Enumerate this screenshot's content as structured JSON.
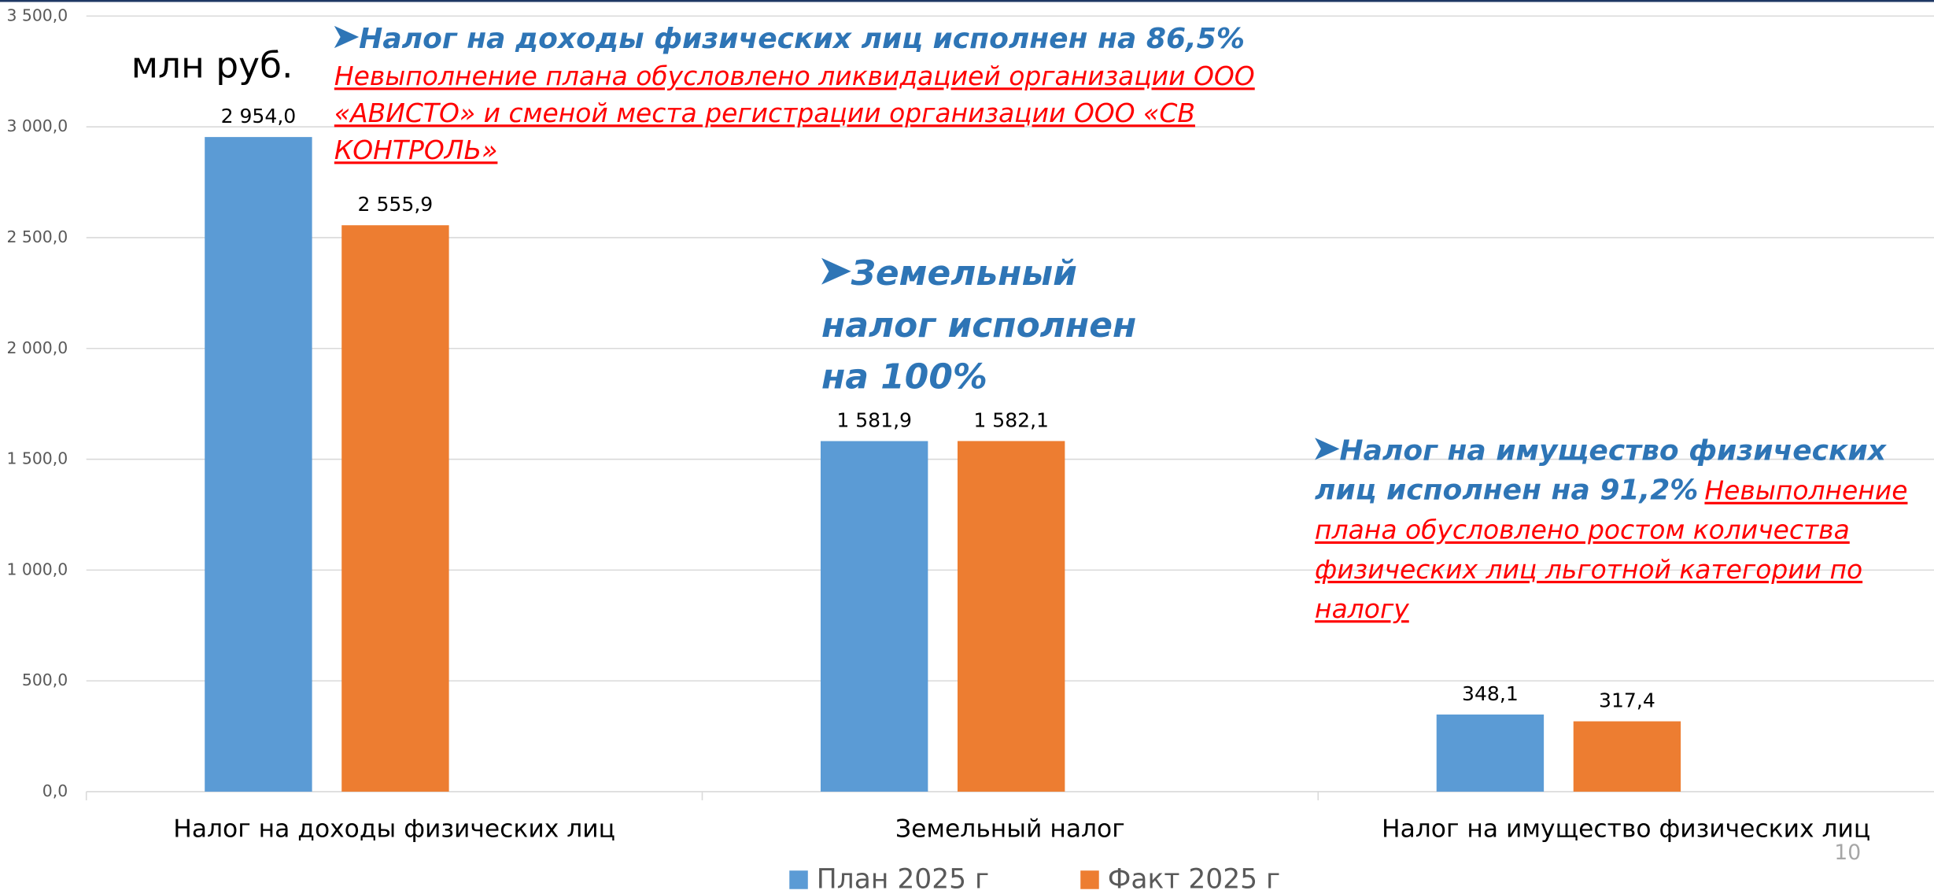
{
  "chart_data": {
    "type": "bar",
    "unit_label": "млн руб.",
    "categories": [
      "Налог на доходы физических лиц",
      "Земельный налог",
      "Налог на имущество физических лиц"
    ],
    "series": [
      {
        "name": "План 2025 г",
        "color": "#5b9bd5",
        "values": [
          2954.0,
          1581.9,
          348.1
        ],
        "value_labels": [
          "2 954,0",
          "1 581,9",
          "348,1"
        ]
      },
      {
        "name": "Факт 2025 г",
        "color": "#ed7d31",
        "values": [
          2555.9,
          1582.1,
          317.4
        ],
        "value_labels": [
          "2 555,9",
          "1 582,1",
          "317,4"
        ]
      }
    ],
    "ylim": [
      0,
      3500
    ],
    "yticks": [
      {
        "value": 0,
        "label": "0,0"
      },
      {
        "value": 500,
        "label": "500,0"
      },
      {
        "value": 1000,
        "label": "1 000,0"
      },
      {
        "value": 1500,
        "label": "1 500,0"
      },
      {
        "value": 2000,
        "label": "2 000,0"
      },
      {
        "value": 2500,
        "label": "2 500,0"
      },
      {
        "value": 3000,
        "label": "3 000,0"
      },
      {
        "value": 3500,
        "label": "3 500,0"
      }
    ],
    "grid": true,
    "legend": "bottom",
    "annotations": [
      {
        "highlight": "Налог на доходы физических лиц исполнен на 86,5%",
        "note": "Невыполнение плана обусловлено ликвидацией организации ООО «АВИСТО» и сменой места регистрации организации ООО «СВ КОНТРОЛЬ»"
      },
      {
        "highlight": "Земельный налог исполнен на 100%"
      },
      {
        "highlight": "Налог на имущество физических лиц исполнен на 91,2%",
        "note": "Невыполнение плана обусловлено ростом количества физических лиц льготной категории по налогу"
      }
    ],
    "page_number": "10"
  }
}
